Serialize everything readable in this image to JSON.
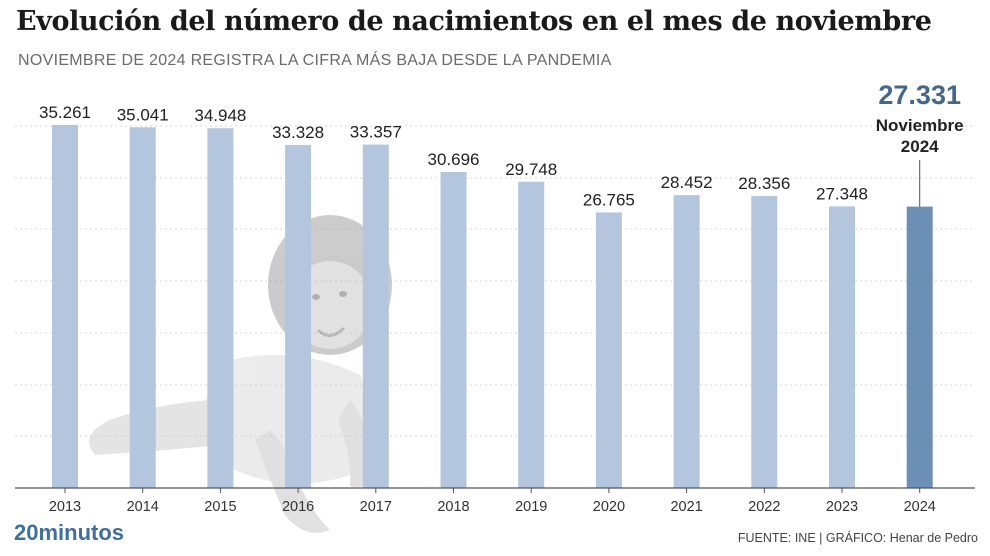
{
  "title": "Evolución del número de nacimientos en el mes de noviembre",
  "subtitle": "NOVIEMBRE DE 2024 REGISTRA LA CIFRA MÁS BAJA DESDE LA PANDEMIA",
  "logo_text": "20minutos",
  "source_text": "FUENTE: INE  |  GRÁFICO: Henar de Pedro",
  "colors": {
    "bar": "#b3c6de",
    "bar_highlight": "#6c8fb5",
    "highlight_value": "#44678c",
    "gridline": "#d9d9d9",
    "axis": "#555555"
  },
  "background_image": "baby-photo",
  "chart_data": {
    "type": "bar",
    "categories": [
      "2013",
      "2014",
      "2015",
      "2016",
      "2017",
      "2018",
      "2019",
      "2020",
      "2021",
      "2022",
      "2023",
      "2024"
    ],
    "values": [
      35261,
      35041,
      34948,
      33328,
      33357,
      30696,
      29748,
      26765,
      28452,
      28356,
      27348,
      27331
    ],
    "value_labels": [
      "35.261",
      "35.041",
      "34.948",
      "33.328",
      "33.357",
      "30.696",
      "29.748",
      "26.765",
      "28.452",
      "28.356",
      "27.348",
      ""
    ],
    "highlight": {
      "index": 11,
      "value_label": "27.331",
      "label_line1": "Noviembre",
      "label_line2": "2024"
    },
    "ylim": [
      0,
      35261
    ],
    "grid": true,
    "xlabel": "",
    "ylabel": ""
  }
}
